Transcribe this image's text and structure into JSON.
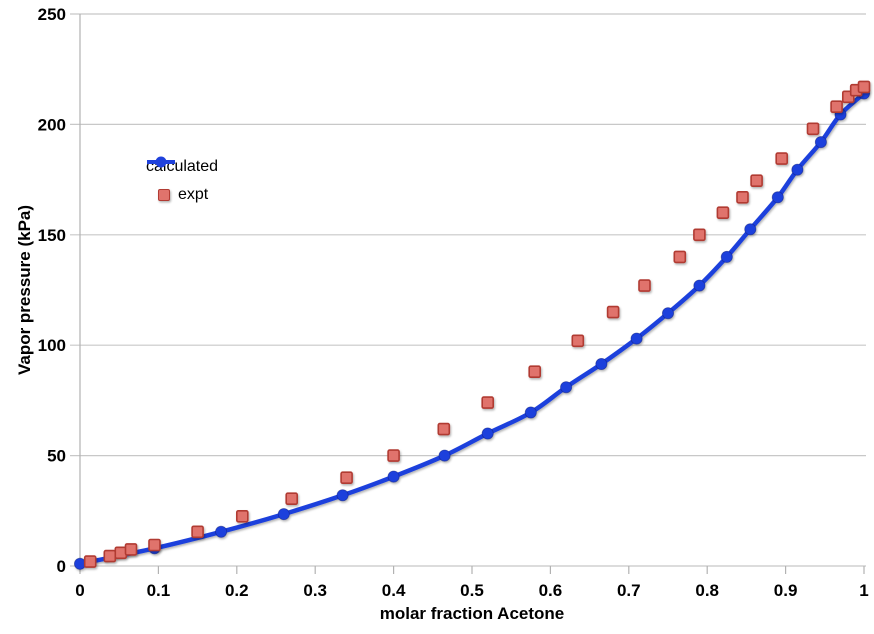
{
  "chart_data": {
    "type": "line",
    "title": "",
    "xlabel": "molar fraction Acetone",
    "ylabel": "Vapor pressure (kPa)",
    "xlim": [
      0,
      1
    ],
    "ylim": [
      0,
      250
    ],
    "x_tick_values": [
      0,
      0.1,
      0.2,
      0.3,
      0.4,
      0.5,
      0.6,
      0.7,
      0.8,
      0.9,
      1
    ],
    "x_tick_labels": [
      "0",
      "0.1",
      "0.2",
      "0.3",
      "0.4",
      "0.5",
      "0.6",
      "0.7",
      "0.8",
      "0.9",
      "1"
    ],
    "y_tick_values": [
      0,
      50,
      100,
      150,
      200,
      250
    ],
    "y_tick_labels": [
      "0",
      "50",
      "100",
      "150",
      "200",
      "250"
    ],
    "grid": "horizontal",
    "legend_position": "inside-upper-left",
    "series": [
      {
        "name": "calculated",
        "type": "line-with-markers",
        "marker": "circle",
        "color": "#1f41dc",
        "points": [
          [
            0,
            1
          ],
          [
            0.095,
            8
          ],
          [
            0.18,
            15.5
          ],
          [
            0.26,
            23.5
          ],
          [
            0.335,
            32
          ],
          [
            0.4,
            40.5
          ],
          [
            0.465,
            50
          ],
          [
            0.52,
            60
          ],
          [
            0.575,
            69.5
          ],
          [
            0.62,
            81
          ],
          [
            0.665,
            91.5
          ],
          [
            0.71,
            103
          ],
          [
            0.75,
            114.5
          ],
          [
            0.79,
            127
          ],
          [
            0.825,
            140
          ],
          [
            0.855,
            152.5
          ],
          [
            0.89,
            167
          ],
          [
            0.915,
            179.5
          ],
          [
            0.945,
            192
          ],
          [
            0.97,
            204.5
          ],
          [
            1,
            214
          ]
        ]
      },
      {
        "name": "expt",
        "type": "scatter",
        "marker": "square",
        "color": "#e0736c",
        "border_color": "#b13b33",
        "points": [
          [
            0.013,
            2
          ],
          [
            0.038,
            4.5
          ],
          [
            0.052,
            6
          ],
          [
            0.065,
            7.5
          ],
          [
            0.095,
            9.5
          ],
          [
            0.15,
            15.5
          ],
          [
            0.207,
            22.5
          ],
          [
            0.27,
            30.5
          ],
          [
            0.34,
            40
          ],
          [
            0.4,
            50
          ],
          [
            0.464,
            62
          ],
          [
            0.52,
            74
          ],
          [
            0.58,
            88
          ],
          [
            0.635,
            102
          ],
          [
            0.68,
            115
          ],
          [
            0.72,
            127
          ],
          [
            0.765,
            140
          ],
          [
            0.79,
            150
          ],
          [
            0.82,
            160
          ],
          [
            0.845,
            167
          ],
          [
            0.863,
            174.5
          ],
          [
            0.895,
            184.5
          ],
          [
            0.935,
            198
          ],
          [
            0.965,
            208
          ],
          [
            0.98,
            212.5
          ],
          [
            0.99,
            215.5
          ],
          [
            1,
            217
          ]
        ]
      }
    ]
  },
  "colors": {
    "background": "#ffffff",
    "gridline": "#c8c8c8",
    "axis": "#b2b2b2",
    "tick_text": "#000000",
    "calculated_blue": "#1f41dc",
    "expt_fill": "#e0736c",
    "expt_border": "#b13b33"
  }
}
